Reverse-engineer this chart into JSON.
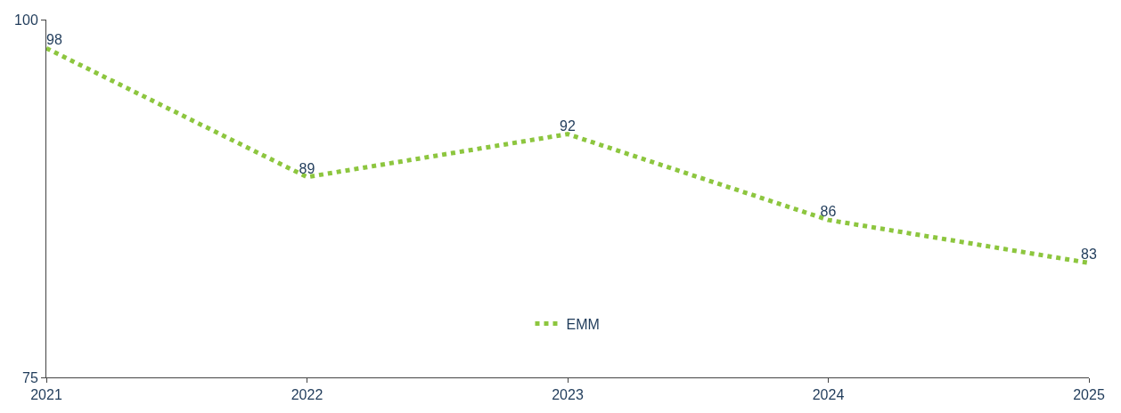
{
  "chart_data": {
    "type": "line",
    "x": [
      2021,
      2022,
      2023,
      2024,
      2025
    ],
    "series": [
      {
        "name": "EMM",
        "color": "#8dc63f",
        "values": [
          98,
          89,
          92,
          86,
          83
        ]
      }
    ],
    "xlim": [
      2021,
      2025
    ],
    "xticks": [
      2021,
      2022,
      2023,
      2024,
      2025
    ],
    "ylim": [
      75,
      100
    ],
    "yticks": [
      75,
      100
    ],
    "data_labels": true,
    "legend": "bottom",
    "line_style": "dotted",
    "marker": "none"
  }
}
